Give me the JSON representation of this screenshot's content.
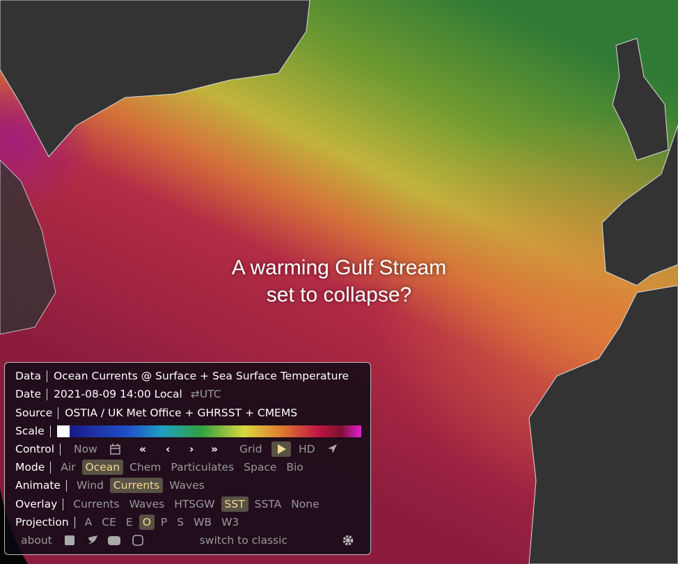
{
  "headline": [
    "A warming Gulf Stream",
    "set to collapse?"
  ],
  "panel": {
    "data": {
      "label": "Data",
      "text": "Ocean Currents @ Surface + Sea Surface Temperature"
    },
    "date": {
      "label": "Date",
      "text": "2021-08-09 14:00 Local",
      "toggle": "⇄UTC"
    },
    "source": {
      "label": "Source",
      "text": "OSTIA / UK Met Office + GHRSST + CMEMS"
    },
    "scale": {
      "label": "Scale"
    },
    "control": {
      "label": "Control",
      "items": [
        "Now",
        "«",
        "‹",
        "›",
        "»",
        "Grid",
        "HD"
      ]
    },
    "mode": {
      "label": "Mode",
      "items": [
        "Air",
        "Ocean",
        "Chem",
        "Particulates",
        "Space",
        "Bio"
      ]
    },
    "animate": {
      "label": "Animate",
      "items": [
        "Wind",
        "Currents",
        "Waves"
      ]
    },
    "overlay": {
      "label": "Overlay",
      "items": [
        "Currents",
        "Waves",
        "HTSGW",
        "SST",
        "SSTA",
        "None"
      ]
    },
    "projection": {
      "label": "Projection",
      "items": [
        "A",
        "CE",
        "E",
        "O",
        "P",
        "S",
        "WB",
        "W3"
      ]
    },
    "footer": {
      "about": "about",
      "classic": "switch to classic"
    }
  }
}
